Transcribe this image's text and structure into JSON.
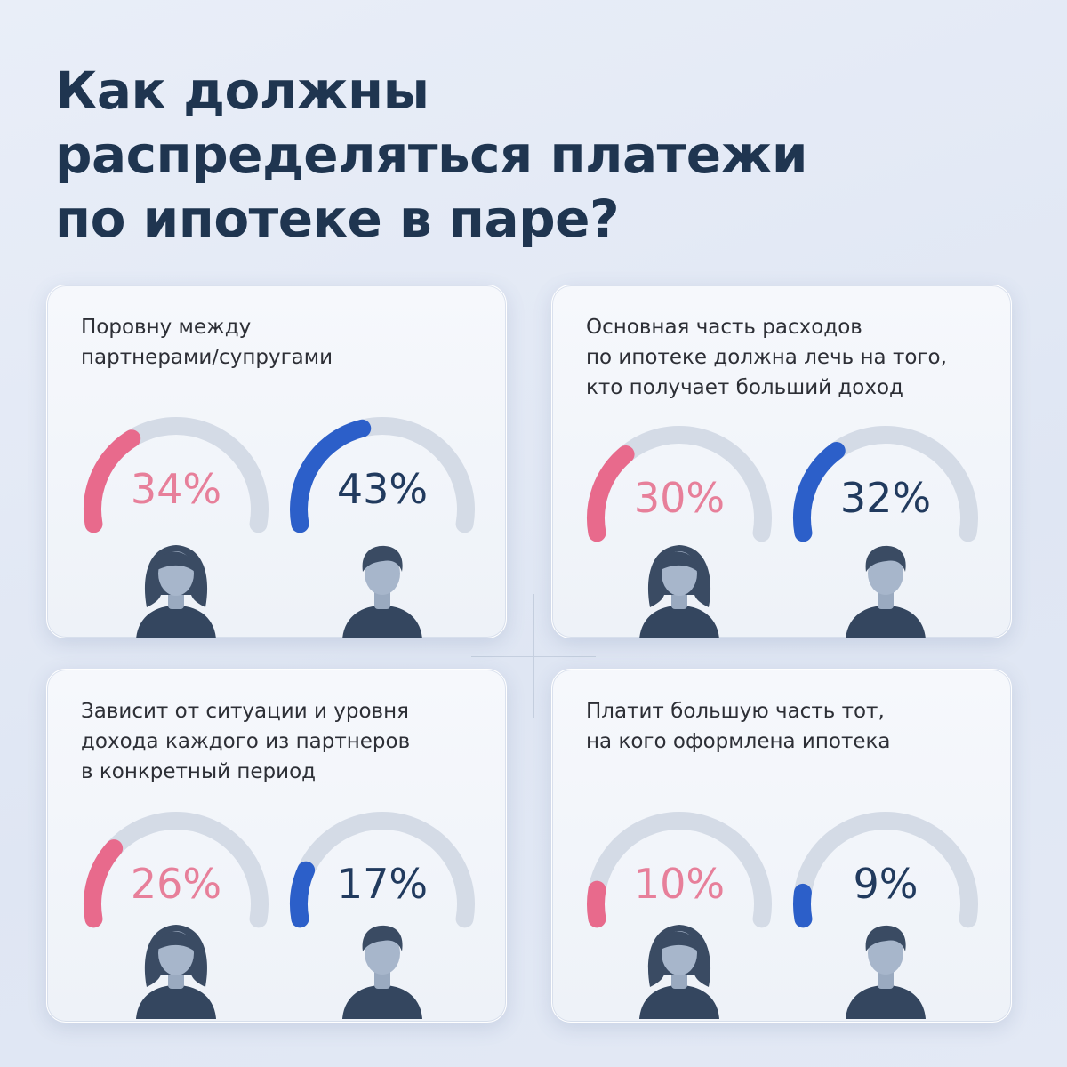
{
  "title": {
    "lines": [
      "Как должны",
      "распределяться платежи",
      "по ипотеке в паре?"
    ]
  },
  "colors": {
    "female": "#e86a8c",
    "male": "#2c5fc9",
    "track": "#d4dbe6",
    "title": "#1f3550"
  },
  "chart_data": [
    {
      "type": "gauge",
      "label_lines": [
        "Поровну между",
        "партнерами/супругами"
      ],
      "series": [
        {
          "group": "female",
          "value": 34,
          "text": "34%"
        },
        {
          "group": "male",
          "value": 43,
          "text": "43%"
        }
      ],
      "range": [
        0,
        100
      ]
    },
    {
      "type": "gauge",
      "label_lines": [
        "Основная часть расходов",
        "по ипотеке должна лечь на того,",
        "кто получает больший доход"
      ],
      "series": [
        {
          "group": "female",
          "value": 30,
          "text": "30%"
        },
        {
          "group": "male",
          "value": 32,
          "text": "32%"
        }
      ],
      "range": [
        0,
        100
      ]
    },
    {
      "type": "gauge",
      "label_lines": [
        "Зависит от ситуации и уровня",
        "дохода каждого из партнеров",
        "в конкретный период"
      ],
      "series": [
        {
          "group": "female",
          "value": 26,
          "text": "26%"
        },
        {
          "group": "male",
          "value": 17,
          "text": "17%"
        }
      ],
      "range": [
        0,
        100
      ]
    },
    {
      "type": "gauge",
      "label_lines": [
        "Платит большую часть тот,",
        "на кого оформлена ипотека"
      ],
      "series": [
        {
          "group": "female",
          "value": 10,
          "text": "10%"
        },
        {
          "group": "male",
          "value": 9,
          "text": "9%"
        }
      ],
      "range": [
        0,
        100
      ]
    }
  ]
}
